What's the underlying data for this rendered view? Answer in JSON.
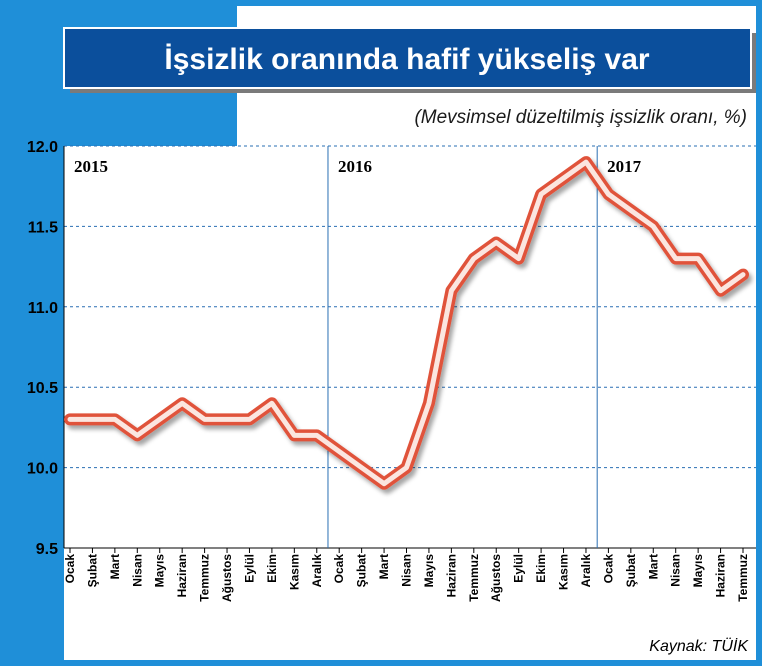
{
  "title": "İşsizlik oranında hafif yükseliş var",
  "subtitle": "(Mevsimsel düzeltilmiş işsizlik oranı, %)",
  "source": "Kaynak: TÜİK",
  "colors": {
    "frame_blue": "#1f8fd8",
    "title_blue": "#0b4f9c",
    "line_red": "#e0533a",
    "line_fill": "#fbe6e0",
    "grid": "#2a6fb3"
  },
  "chart_data": {
    "type": "line",
    "title": "İşsizlik oranında hafif yükseliş var",
    "subtitle": "(Mevsimsel düzeltilmiş işsizlik oranı, %)",
    "ylim": [
      9.5,
      12.0
    ],
    "yticks": [
      "12.0",
      "11.5",
      "11.0",
      "10.5",
      "10.0",
      "9.5"
    ],
    "grid": "horizontal dashed",
    "years": [
      {
        "label": "2015",
        "start_index": 0
      },
      {
        "label": "2016",
        "start_index": 12
      },
      {
        "label": "2017",
        "start_index": 24
      }
    ],
    "categories": [
      "Ocak",
      "Şubat",
      "Mart",
      "Nisan",
      "Mayıs",
      "Haziran",
      "Temmuz",
      "Ağustos",
      "Eylül",
      "Ekim",
      "Kasım",
      "Aralık",
      "Ocak",
      "Şubat",
      "Mart",
      "Nisan",
      "Mayıs",
      "Haziran",
      "Temmuz",
      "Ağustos",
      "Eylül",
      "Ekim",
      "Kasım",
      "Aralık",
      "Ocak",
      "Şubat",
      "Mart",
      "Nisan",
      "Mayıs",
      "Haziran",
      "Temmuz"
    ],
    "values": [
      10.3,
      10.3,
      10.3,
      10.2,
      10.3,
      10.4,
      10.3,
      10.3,
      10.3,
      10.4,
      10.2,
      10.2,
      10.1,
      10.0,
      9.9,
      10.0,
      10.4,
      11.1,
      11.3,
      11.4,
      11.3,
      11.7,
      11.8,
      11.9,
      11.7,
      11.6,
      11.5,
      11.3,
      11.3,
      11.1,
      11.2
    ]
  }
}
